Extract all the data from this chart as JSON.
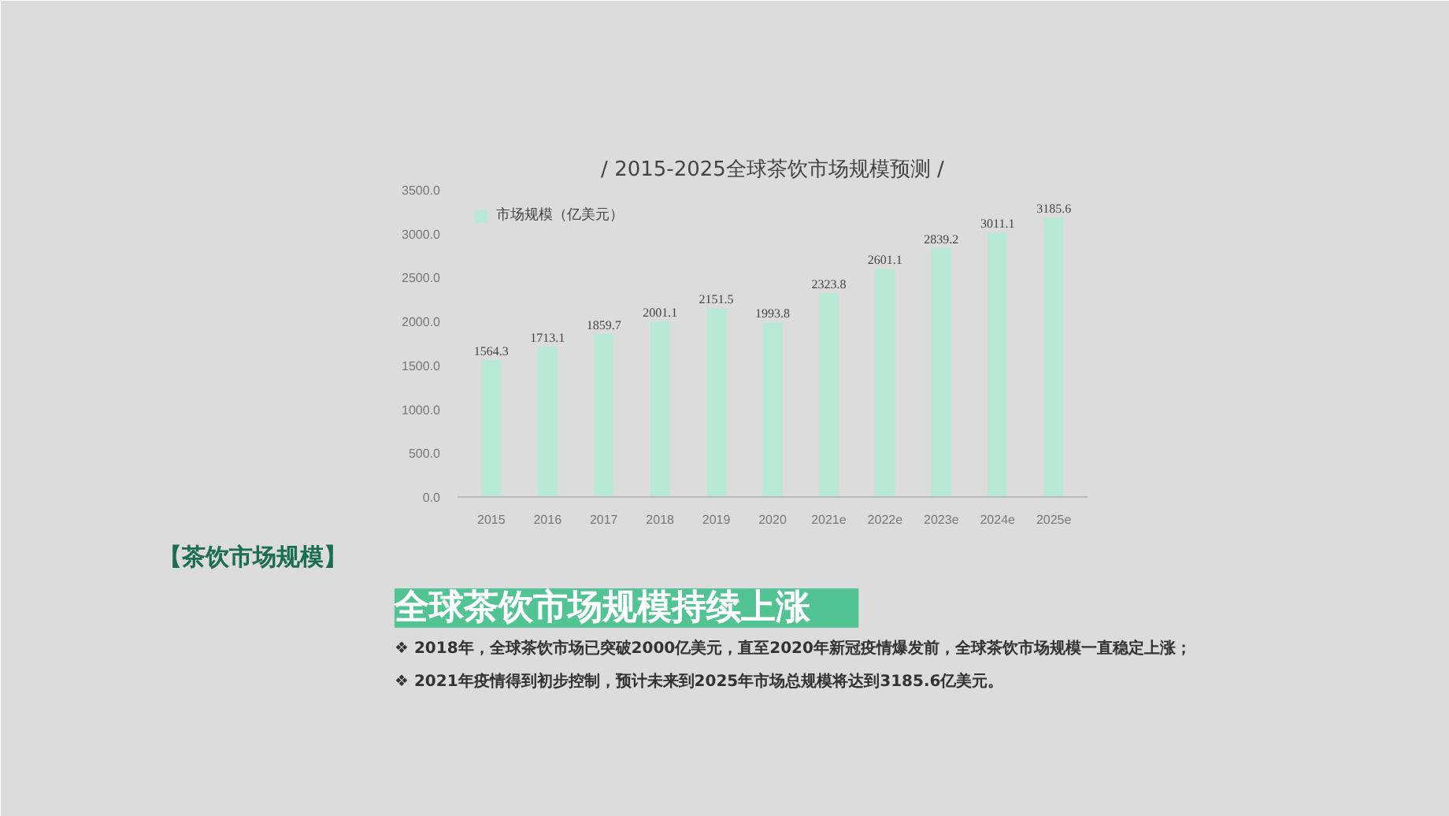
{
  "chart_data": {
    "type": "bar",
    "title": "/ 2015-2025全球茶饮市场规模预测 /",
    "categories": [
      "2015",
      "2016",
      "2017",
      "2018",
      "2019",
      "2020",
      "2021e",
      "2022e",
      "2023e",
      "2024e",
      "2025e"
    ],
    "series": [
      {
        "name": "市场规模（亿美元）",
        "color": "#b8e8d6",
        "values": [
          1564.3,
          1713.1,
          1859.7,
          2001.1,
          2151.5,
          1993.8,
          2323.8,
          2601.1,
          2839.2,
          3011.1,
          3185.6
        ]
      }
    ],
    "ylim": [
      0,
      3500
    ],
    "yticks": [
      {
        "value": 0,
        "label": "0.0"
      },
      {
        "value": 500,
        "label": "500.0"
      },
      {
        "value": 1000,
        "label": "1000.0"
      },
      {
        "value": 1500,
        "label": "1500.0"
      },
      {
        "value": 2000,
        "label": "2000.0"
      },
      {
        "value": 2500,
        "label": "2500.0"
      },
      {
        "value": 3000,
        "label": "3000.0"
      },
      {
        "value": 3500,
        "label": "3500.0"
      }
    ],
    "data_labels": true,
    "legend": "top left",
    "grid": false,
    "annotations": [
      "【茶饮市场规模】",
      "全球茶饮市场规模持续上涨",
      "❖ 2018年，全球茶饮市场已突破2000亿美元，直至2020年新冠疫情爆发前，全球茶饮市场规模一直稳定上涨；",
      "❖ 2021年疫情得到初步控制，预计未来到2025年市场总规模将达到3185.6亿美元。"
    ]
  }
}
